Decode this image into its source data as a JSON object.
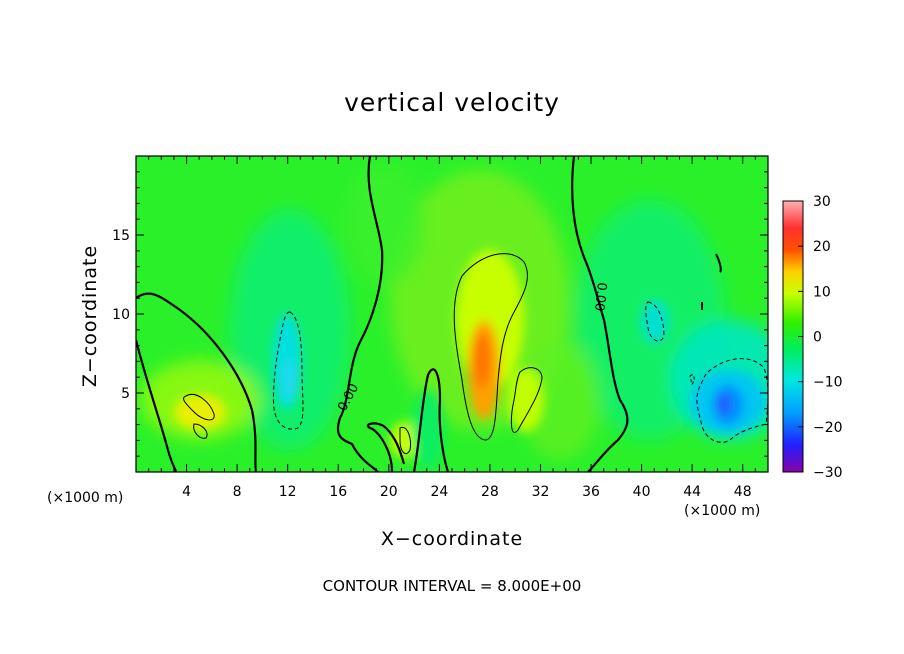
{
  "chart_data": {
    "type": "heatmap",
    "title": "vertical velocity",
    "xlabel": "X−coordinate",
    "ylabel": "Z−coordinate",
    "x_unit_label": "(×1000 m)",
    "x_unit_label_right": "(×1000 m)",
    "xlim": [
      0,
      50
    ],
    "ylim": [
      0,
      20
    ],
    "xticks": [
      4,
      8,
      12,
      16,
      20,
      24,
      28,
      32,
      36,
      40,
      44,
      48
    ],
    "yticks": [
      5,
      10,
      15
    ],
    "colorbar": {
      "min": -30,
      "max": 30,
      "ticks": [
        30,
        20,
        10,
        0,
        -10,
        -20,
        -30
      ],
      "tick_labels": [
        "30",
        "20",
        "10",
        "0",
        "−10",
        "−20",
        "−30"
      ],
      "colormap": [
        "#8a00a8",
        "#2020ff",
        "#00a0ff",
        "#00e8e0",
        "#00ee60",
        "#30f000",
        "#c8ff00",
        "#ffd000",
        "#ff5000",
        "#ff3030",
        "#ffb0b0"
      ]
    },
    "contour_interval": 8.0,
    "contour_label": "0.00",
    "footnote": "CONTOUR INTERVAL = 8.000E+00",
    "features": [
      {
        "kind": "updraft",
        "x": 5,
        "z": 4,
        "peak": 12
      },
      {
        "kind": "downdraft",
        "x": 12,
        "z": 6,
        "peak": -8
      },
      {
        "kind": "updraft",
        "x": 21.5,
        "z": 2,
        "peak": 8
      },
      {
        "kind": "updraft",
        "x": 27.5,
        "z": 7,
        "peak": 18
      },
      {
        "kind": "updraft",
        "x": 31,
        "z": 4.5,
        "peak": 9
      },
      {
        "kind": "downdraft",
        "x": 40.5,
        "z": 9.5,
        "peak": -8
      },
      {
        "kind": "downdraft",
        "x": 46.5,
        "z": 4.5,
        "peak": -15
      }
    ]
  }
}
